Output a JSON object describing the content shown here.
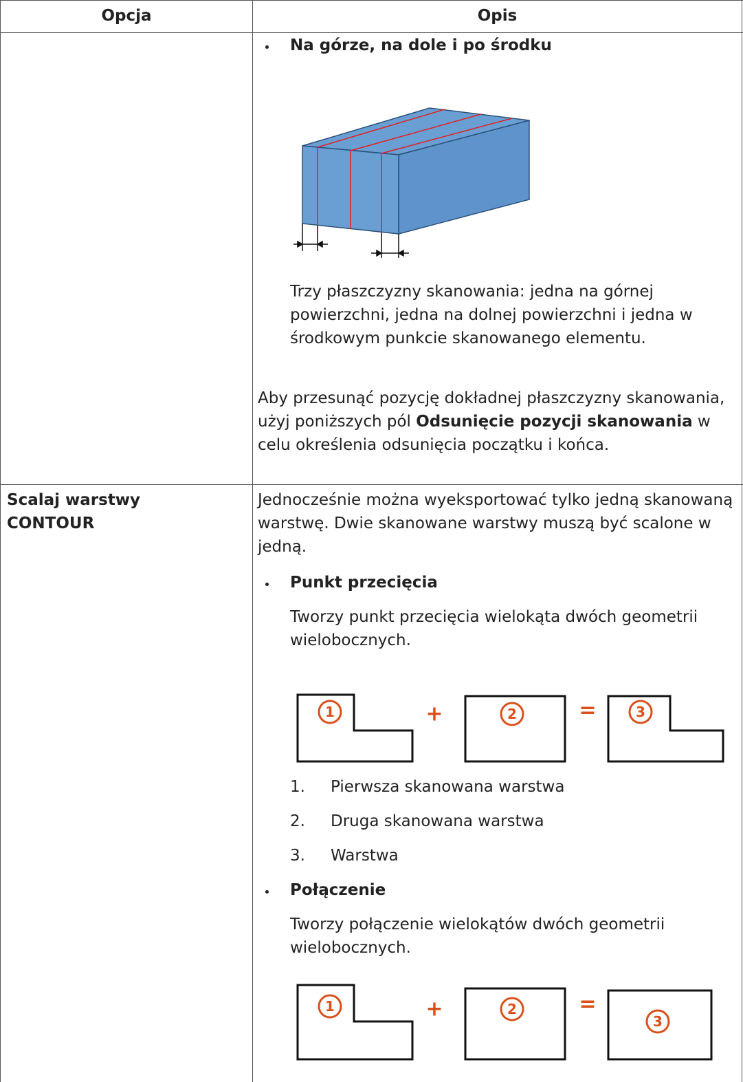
{
  "table": {
    "header": [
      "Opcja",
      "Opis"
    ],
    "rows": [
      {
        "description": {
          "bullet": "Na górze, na dole i po środku",
          "caption": "Trzy płaszczyzny skanowania: jedna na górnej powierzchni, jedna na dolnej powierzchni i jedna w środkowym punkcie skanowanego elementu.",
          "note": [
            {
              "text": "Aby przesunąć pozycję dokładnej płaszczyzny skanowania, użyj poniższych pól "
            },
            {
              "text": "Odsunięcie pozycji skanowania",
              "bold": true
            },
            {
              "text": " w celu określenia odsunięcia początku i końca."
            }
          ]
        }
      },
      {
        "option": "Scalaj warstwy CONTOUR",
        "description": {
          "intro": "Jednocześnie można wyeksportować tylko jedną skanowaną warstwę. Dwie skanowane warstwy muszą być scalone w jedną.",
          "items": [
            {
              "bullet": "Punkt przecięcia",
              "text": "Tworzy punkt przecięcia wielokąta dwóch geometrii wielobocznych.",
              "diagram": {
                "labels": [
                  "1",
                  "2",
                  "3"
                ],
                "operators": [
                  "+",
                  "="
                ]
              },
              "list": [
                {
                  "marker": "1.",
                  "text": "Pierwsza skanowana warstwa"
                },
                {
                  "marker": "2.",
                  "text": "Druga skanowana warstwa"
                },
                {
                  "marker": "3.",
                  "text": "Warstwa"
                }
              ]
            },
            {
              "bullet": "Połączenie",
              "text": "Tworzy połączenie wielokątów dwóch geometrii wielobocznych.",
              "diagram": {
                "labels": [
                  "1",
                  "2",
                  "3"
                ],
                "operators": [
                  "+",
                  "="
                ]
              }
            }
          ]
        }
      }
    ]
  }
}
